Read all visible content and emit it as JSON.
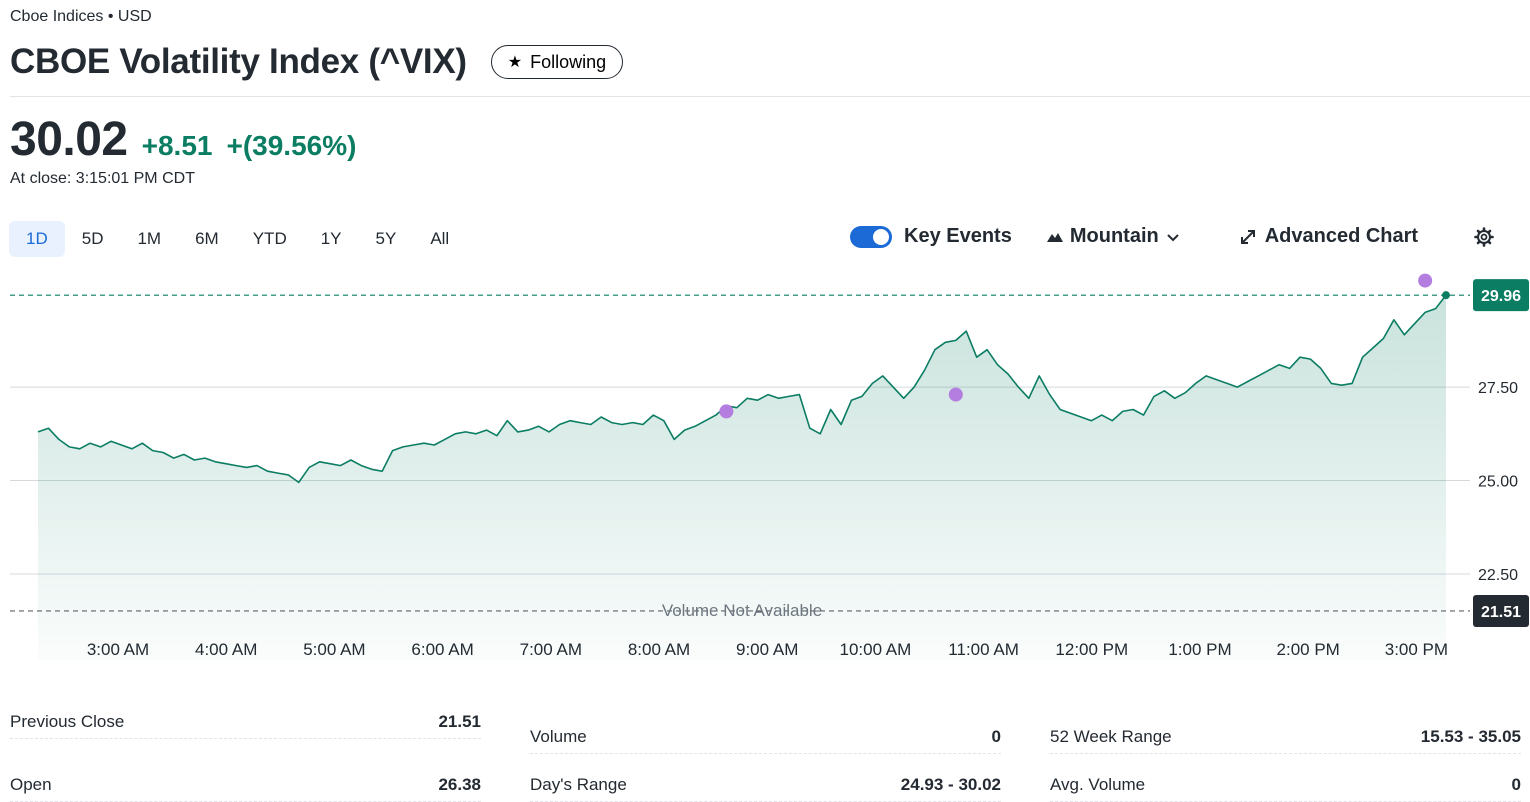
{
  "header": {
    "breadcrumb": "Cboe Indices • USD",
    "title": "CBOE Volatility Index (^VIX)",
    "follow_label": "Following"
  },
  "quote": {
    "price": "30.02",
    "change": "+8.51",
    "change_pct": "+(39.56%)",
    "close_time": "At close: 3:15:01 PM CDT",
    "positive_color": "#0b7d63"
  },
  "range_tabs": [
    "1D",
    "5D",
    "1M",
    "6M",
    "YTD",
    "1Y",
    "5Y",
    "All"
  ],
  "active_range": "1D",
  "controls": {
    "key_events_label": "Key Events",
    "key_events_on": true,
    "chart_type_label": "Mountain",
    "advanced_label": "Advanced Chart",
    "toggle_color": "#1b6ad6"
  },
  "chart_data": {
    "type": "area",
    "x_tick_labels": [
      "3:00 AM",
      "4:00 AM",
      "5:00 AM",
      "6:00 AM",
      "7:00 AM",
      "8:00 AM",
      "9:00 AM",
      "10:00 AM",
      "11:00 AM",
      "12:00 PM",
      "1:00 PM",
      "2:00 PM",
      "3:00 PM"
    ],
    "y_tick_labels": [
      "22.50",
      "25.00",
      "27.50"
    ],
    "y_ticks": [
      22.5,
      25,
      27.5
    ],
    "ylim": [
      21.0,
      30.5
    ],
    "last_price_label": "29.96",
    "last_price": 29.96,
    "previous_close_label": "21.51",
    "previous_close": 21.51,
    "volume_note": "Volume Not Available",
    "line_color": "#0b7d63",
    "event_color": "#b47ee0",
    "series": [
      {
        "values": [
          26.3,
          26.4,
          26.1,
          25.9,
          25.85,
          26.0,
          25.9,
          26.05,
          25.95,
          25.85,
          26.0,
          25.8,
          25.75,
          25.6,
          25.7,
          25.55,
          25.6,
          25.5,
          25.45,
          25.4,
          25.35,
          25.4,
          25.25,
          25.2,
          25.15,
          24.95,
          25.35,
          25.5,
          25.45,
          25.4,
          25.55,
          25.4,
          25.3,
          25.25,
          25.8,
          25.9,
          25.95,
          26.0,
          25.95,
          26.1,
          26.25,
          26.3,
          26.25,
          26.35,
          26.2,
          26.6,
          26.3,
          26.35,
          26.45,
          26.3,
          26.5,
          26.6,
          26.55,
          26.5,
          26.7,
          26.55,
          26.5,
          26.55,
          26.5,
          26.75,
          26.6,
          26.1,
          26.35,
          26.45,
          26.6,
          26.75,
          27.0,
          26.95,
          27.2,
          27.15,
          27.3,
          27.2,
          27.25,
          27.3,
          26.4,
          26.25,
          26.9,
          26.5,
          27.15,
          27.25,
          27.6,
          27.8,
          27.5,
          27.2,
          27.5,
          27.95,
          28.5,
          28.7,
          28.75,
          29.0,
          28.3,
          28.5,
          28.1,
          27.85,
          27.5,
          27.2,
          27.8,
          27.3,
          26.9,
          26.8,
          26.7,
          26.6,
          26.75,
          26.6,
          26.85,
          26.9,
          26.75,
          27.25,
          27.4,
          27.2,
          27.35,
          27.6,
          27.8,
          27.7,
          27.6,
          27.5,
          27.65,
          27.8,
          27.95,
          28.1,
          28.0,
          28.3,
          28.25,
          28.0,
          27.6,
          27.55,
          27.6,
          28.3,
          28.55,
          28.8,
          29.3,
          28.9,
          29.2,
          29.5,
          29.6,
          29.96
        ]
      }
    ],
    "key_events": [
      {
        "index": 66,
        "value": 26.85
      },
      {
        "index": 88,
        "value": 27.3
      },
      {
        "index": 133,
        "value": 30.35
      }
    ]
  },
  "stats": [
    {
      "label": "Previous Close",
      "value": "21.51"
    },
    {
      "label": "Volume",
      "value": "0"
    },
    {
      "label": "52 Week Range",
      "value": "15.53 - 35.05"
    },
    {
      "label": "Open",
      "value": "26.38"
    },
    {
      "label": "Day's Range",
      "value": "24.93 - 30.02"
    },
    {
      "label": "Avg. Volume",
      "value": "0"
    }
  ]
}
